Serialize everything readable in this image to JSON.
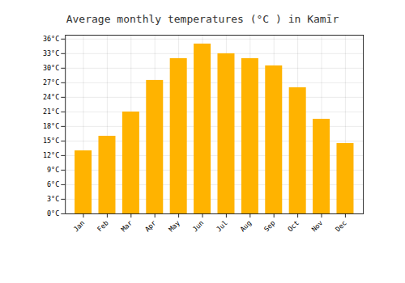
{
  "chart_data": {
    "type": "bar",
    "title": "Average monthly temperatures (°C ) in Kamīr",
    "categories": [
      "Jan",
      "Feb",
      "Mar",
      "Apr",
      "May",
      "Jun",
      "Jul",
      "Aug",
      "Sep",
      "Oct",
      "Nov",
      "Dec"
    ],
    "values": [
      13,
      16,
      21,
      27.5,
      32,
      35,
      33,
      32,
      30.5,
      26,
      19.5,
      14.5
    ],
    "color": "#FFB300",
    "ylim": [
      0,
      36.8
    ],
    "yticks": [
      {
        "value": 0,
        "label": "0°C"
      },
      {
        "value": 3,
        "label": "3°C"
      },
      {
        "value": 6,
        "label": "6°C"
      },
      {
        "value": 9,
        "label": "9°C"
      },
      {
        "value": 12,
        "label": "12°C"
      },
      {
        "value": 15,
        "label": "15°C"
      },
      {
        "value": 18,
        "label": "18°C"
      },
      {
        "value": 21,
        "label": "21°C"
      },
      {
        "value": 24,
        "label": "24°C"
      },
      {
        "value": 27,
        "label": "27°C"
      },
      {
        "value": 30,
        "label": "30°C"
      },
      {
        "value": 33,
        "label": "33°C"
      },
      {
        "value": 36,
        "label": "36°C"
      }
    ],
    "grid": true
  }
}
